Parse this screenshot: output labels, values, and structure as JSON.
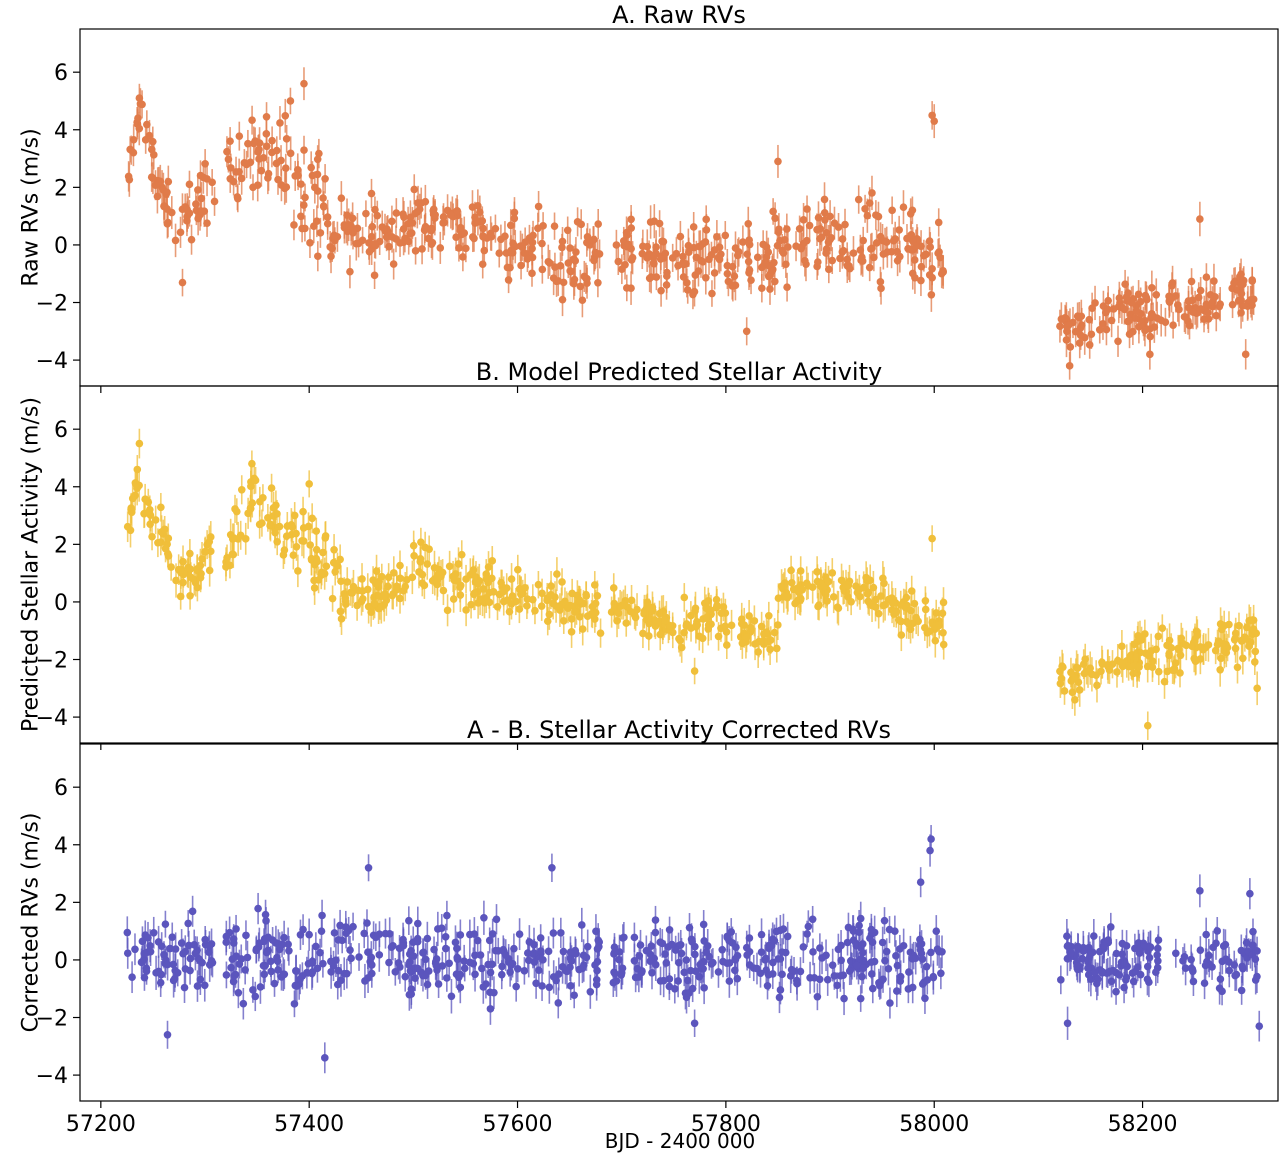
{
  "figure": {
    "xlabel": "BJD - 2400 000"
  },
  "colors": {
    "raw": "#e07b4a",
    "activity": "#f0bf3a",
    "corrected": "#5b55bd"
  },
  "chart_data": [
    {
      "type": "scatter",
      "title": "A. Raw RVs",
      "xlabel": "",
      "ylabel": "Raw RVs (m/s)",
      "xlim": [
        57180,
        58330
      ],
      "ylim": [
        -4.9,
        7.5
      ],
      "x_ticks": [
        57200,
        57400,
        57600,
        57800,
        58000,
        58200
      ],
      "y_ticks": [
        -4,
        -2,
        0,
        2,
        4,
        6
      ],
      "show_x_tick_labels": false,
      "error_bars": true,
      "grid": false,
      "series": [
        {
          "color": "#e07b4a",
          "segments": [
            {
              "x0": 57225,
              "x1": 57240,
              "y0": 2.0,
              "y1": 5.0,
              "noise": 0.6
            },
            {
              "x0": 57240,
              "x1": 57275,
              "y0": 4.0,
              "y1": 0.0,
              "noise": 0.8
            },
            {
              "x0": 57275,
              "x1": 57310,
              "y0": 0.0,
              "y1": 2.5,
              "noise": 1.2
            },
            {
              "x0": 57320,
              "x1": 57360,
              "y0": 2.5,
              "y1": 3.5,
              "noise": 1.0
            },
            {
              "x0": 57360,
              "x1": 57420,
              "y0": 3.5,
              "y1": 1.0,
              "noise": 1.6
            },
            {
              "x0": 57420,
              "x1": 57500,
              "y0": 0.5,
              "y1": 0.3,
              "noise": 1.0
            },
            {
              "x0": 57500,
              "x1": 57600,
              "y0": 1.0,
              "y1": 0.0,
              "noise": 1.0
            },
            {
              "x0": 57600,
              "x1": 57680,
              "y0": 0.0,
              "y1": -0.5,
              "noise": 1.1
            },
            {
              "x0": 57690,
              "x1": 57800,
              "y0": -0.2,
              "y1": -0.5,
              "noise": 1.0
            },
            {
              "x0": 57800,
              "x1": 57880,
              "y0": -1.0,
              "y1": 0.2,
              "noise": 1.1
            },
            {
              "x0": 57880,
              "x1": 58010,
              "y0": 0.3,
              "y1": -0.3,
              "noise": 1.2
            },
            {
              "x0": 58120,
              "x1": 58200,
              "y0": -3.2,
              "y1": -2.2,
              "noise": 0.8
            },
            {
              "x0": 58200,
              "x1": 58310,
              "y0": -2.6,
              "y1": -1.6,
              "noise": 0.8
            }
          ],
          "extra_points": [
            [
              57237,
              5.1
            ],
            [
              57238,
              4.9
            ],
            [
              57395,
              5.6
            ],
            [
              57382,
              5.0
            ],
            [
              57998,
              4.5
            ],
            [
              58000,
              4.3
            ],
            [
              57850,
              2.9
            ],
            [
              58255,
              0.9
            ],
            [
              58130,
              -4.2
            ],
            [
              57820,
              -3.0
            ],
            [
              58207,
              -3.8
            ],
            [
              58299,
              -3.8
            ]
          ]
        }
      ]
    },
    {
      "type": "scatter",
      "title": "B. Model Predicted Stellar Activity",
      "xlabel": "",
      "ylabel": "Predicted Stellar Activity (m/s)",
      "xlim": [
        57180,
        58330
      ],
      "ylim": [
        -4.9,
        7.5
      ],
      "x_ticks": [
        57200,
        57400,
        57600,
        57800,
        58000,
        58200
      ],
      "y_ticks": [
        -4,
        -2,
        0,
        2,
        4,
        6
      ],
      "show_x_tick_labels": false,
      "error_bars": true,
      "grid": false,
      "series": [
        {
          "color": "#f0bf3a",
          "segments": [
            {
              "x0": 57225,
              "x1": 57240,
              "y0": 2.2,
              "y1": 5.0,
              "noise": 0.5
            },
            {
              "x0": 57240,
              "x1": 57280,
              "y0": 3.5,
              "y1": 0.8,
              "noise": 0.7
            },
            {
              "x0": 57280,
              "x1": 57310,
              "y0": 0.8,
              "y1": 2.0,
              "noise": 0.8
            },
            {
              "x0": 57320,
              "x1": 57350,
              "y0": 1.5,
              "y1": 4.2,
              "noise": 0.8
            },
            {
              "x0": 57350,
              "x1": 57430,
              "y0": 3.5,
              "y1": 0.8,
              "noise": 0.9
            },
            {
              "x0": 57430,
              "x1": 57500,
              "y0": 0.0,
              "y1": 0.8,
              "noise": 0.6
            },
            {
              "x0": 57500,
              "x1": 57600,
              "y0": 1.2,
              "y1": 0.2,
              "noise": 0.8
            },
            {
              "x0": 57600,
              "x1": 57680,
              "y0": 0.2,
              "y1": -0.3,
              "noise": 0.7
            },
            {
              "x0": 57690,
              "x1": 57760,
              "y0": 0.0,
              "y1": -1.0,
              "noise": 0.5
            },
            {
              "x0": 57760,
              "x1": 57850,
              "y0": -0.5,
              "y1": -1.2,
              "noise": 0.6
            },
            {
              "x0": 57850,
              "x1": 57940,
              "y0": 0.5,
              "y1": 0.5,
              "noise": 0.6
            },
            {
              "x0": 57940,
              "x1": 58010,
              "y0": 0.0,
              "y1": -1.0,
              "noise": 0.7
            },
            {
              "x0": 58120,
              "x1": 58200,
              "y0": -2.6,
              "y1": -1.8,
              "noise": 0.5
            },
            {
              "x0": 58200,
              "x1": 58310,
              "y0": -2.0,
              "y1": -1.2,
              "noise": 0.7
            }
          ],
          "extra_points": [
            [
              57237,
              5.5
            ],
            [
              57235,
              4.6
            ],
            [
              57345,
              4.8
            ],
            [
              57400,
              4.1
            ],
            [
              57998,
              2.2
            ],
            [
              57770,
              -2.4
            ],
            [
              58205,
              -4.3
            ],
            [
              58135,
              -3.4
            ],
            [
              58310,
              -3.0
            ]
          ]
        }
      ]
    },
    {
      "type": "scatter",
      "title": "A - B. Stellar Activity Corrected RVs",
      "xlabel": "BJD - 2400 000",
      "ylabel": "Corrected RVs (m/s)",
      "xlim": [
        57180,
        58330
      ],
      "ylim": [
        -4.9,
        7.5
      ],
      "x_ticks": [
        57200,
        57400,
        57600,
        57800,
        58000,
        58200
      ],
      "y_ticks": [
        -4,
        -2,
        0,
        2,
        4,
        6
      ],
      "show_x_tick_labels": true,
      "error_bars": true,
      "grid": false,
      "series": [
        {
          "color": "#5b55bd",
          "segments": [
            {
              "x0": 57225,
              "x1": 57310,
              "y0": 0.0,
              "y1": 0.0,
              "noise": 1.1
            },
            {
              "x0": 57320,
              "x1": 57500,
              "y0": 0.0,
              "y1": 0.0,
              "noise": 1.2
            },
            {
              "x0": 57500,
              "x1": 57680,
              "y0": 0.0,
              "y1": 0.0,
              "noise": 1.1
            },
            {
              "x0": 57690,
              "x1": 57850,
              "y0": 0.0,
              "y1": 0.0,
              "noise": 1.0
            },
            {
              "x0": 57850,
              "x1": 58010,
              "y0": 0.0,
              "y1": 0.0,
              "noise": 1.1
            },
            {
              "x0": 58120,
              "x1": 58310,
              "y0": 0.0,
              "y1": 0.0,
              "noise": 1.0
            }
          ],
          "extra_points": [
            [
              57997,
              4.2
            ],
            [
              57996,
              3.8
            ],
            [
              57457,
              3.2
            ],
            [
              57633,
              3.2
            ],
            [
              57415,
              -3.4
            ],
            [
              57264,
              -2.6
            ],
            [
              57770,
              -2.2
            ],
            [
              58128,
              -2.2
            ],
            [
              58312,
              -2.3
            ],
            [
              57987,
              2.7
            ],
            [
              58255,
              2.4
            ],
            [
              58303,
              2.3
            ]
          ]
        }
      ]
    }
  ]
}
